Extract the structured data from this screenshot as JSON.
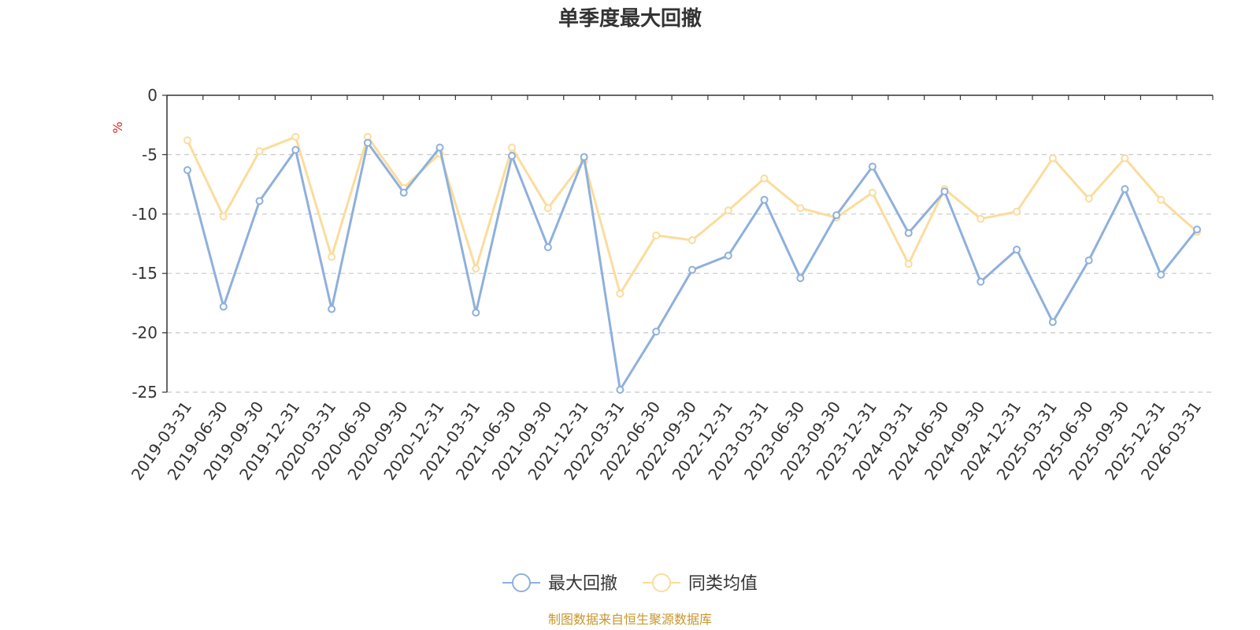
{
  "chart_data": {
    "type": "line",
    "title": "单季度最大回撤",
    "ylabel": "%",
    "ylim": [
      -25,
      0
    ],
    "yticks": [
      0,
      -5,
      -10,
      -15,
      -20,
      -25
    ],
    "grid": true,
    "legend_position": "bottom-center",
    "categories": [
      "2019-03-31",
      "2019-06-30",
      "2019-09-30",
      "2019-12-31",
      "2020-03-31",
      "2020-06-30",
      "2020-09-30",
      "2020-12-31",
      "2021-03-31",
      "2021-06-30",
      "2021-09-30",
      "2021-12-31",
      "2022-03-31",
      "2022-06-30",
      "2022-09-30",
      "2022-12-31",
      "2023-03-31",
      "2023-06-30",
      "2023-09-30",
      "2023-12-31",
      "2024-03-31",
      "2024-06-30",
      "2024-09-30",
      "2024-12-31",
      "2025-03-31",
      "2025-06-30",
      "2025-09-30",
      "2025-12-31",
      "2026-03-31"
    ],
    "series": [
      {
        "name": "最大回撤",
        "color": "#8eb0dc",
        "values": [
          -6.3,
          -17.8,
          -8.9,
          -4.6,
          -18.0,
          -4.0,
          -8.2,
          -4.4,
          -18.3,
          -5.1,
          -12.8,
          -5.2,
          -24.8,
          -19.9,
          -14.7,
          -13.5,
          -8.8,
          -15.4,
          -10.1,
          -6.0,
          -11.6,
          -8.1,
          -15.7,
          -13.0,
          -19.1,
          -13.9,
          -7.9,
          -15.1,
          -11.3
        ]
      },
      {
        "name": "同类均值",
        "color": "#fbdc9c",
        "values": [
          -3.8,
          -10.2,
          -4.7,
          -3.5,
          -13.6,
          -3.5,
          -7.8,
          -4.9,
          -14.6,
          -4.4,
          -9.5,
          -5.5,
          -16.7,
          -11.8,
          -12.2,
          -9.7,
          -7.0,
          -9.5,
          -10.3,
          -8.2,
          -14.2,
          -7.9,
          -10.4,
          -9.8,
          -5.3,
          -8.7,
          -5.3,
          -8.8,
          -11.5
        ]
      }
    ]
  },
  "source": "制图数据来自恒生聚源数据库",
  "colors": {
    "unit": "#e8231b",
    "source": "#c8962e",
    "axis": "#333333",
    "grid": "#c8c8c8"
  }
}
